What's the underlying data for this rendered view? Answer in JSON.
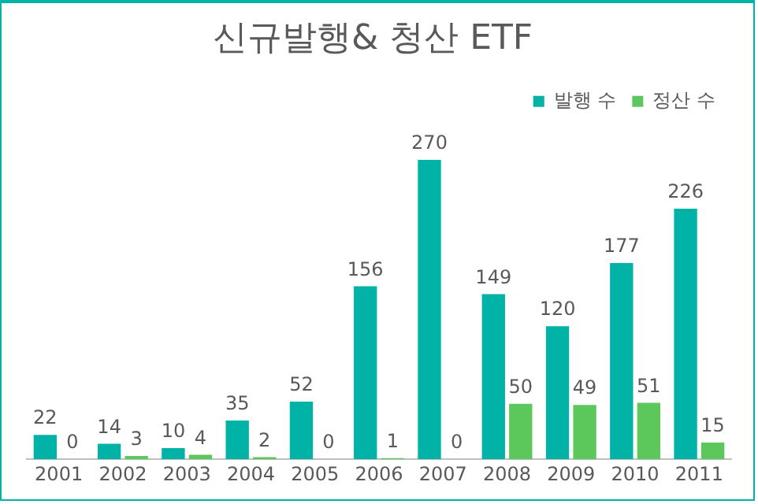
{
  "chart_data": {
    "type": "bar",
    "title": "신규발행& 청산 ETF",
    "categories": [
      "2001",
      "2002",
      "2003",
      "2004",
      "2005",
      "2006",
      "2007",
      "2008",
      "2009",
      "2010",
      "2011"
    ],
    "series": [
      {
        "name": "발행 수",
        "color": "#00b3a6",
        "values": [
          22,
          14,
          10,
          35,
          52,
          156,
          270,
          149,
          120,
          177,
          226
        ]
      },
      {
        "name": "정산 수",
        "color": "#5cc85c",
        "values": [
          0,
          3,
          4,
          2,
          0,
          1,
          0,
          50,
          49,
          51,
          15
        ]
      }
    ],
    "relative": false,
    "data_labels": true,
    "legend": "top right",
    "grid": false
  }
}
